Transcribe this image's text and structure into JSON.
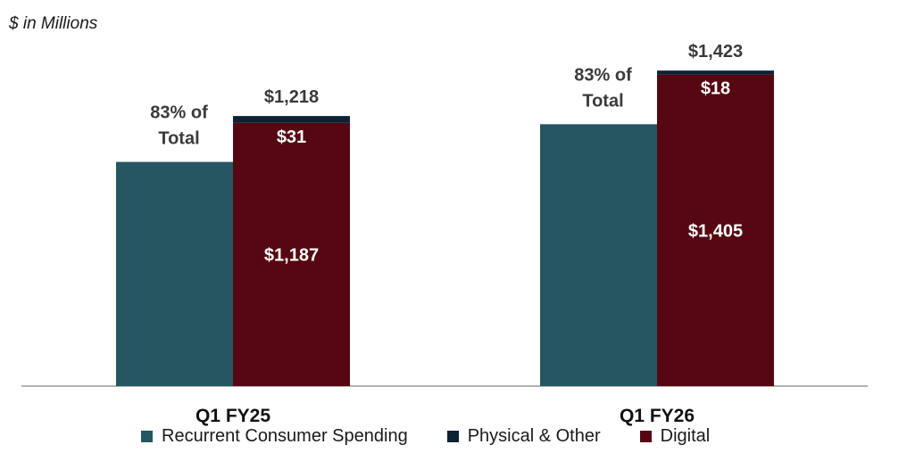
{
  "unit_label": "$ in Millions",
  "colors": {
    "recurrent": "#255661",
    "physical": "#0d2233",
    "digital": "#560711",
    "axis": "#9a9a9a",
    "text_dark": "#3a3a3a",
    "text_white": "#ffffff"
  },
  "chart_data": {
    "type": "bar",
    "stacked": true,
    "categories": [
      "Q1 FY25",
      "Q1 FY26"
    ],
    "ylim": [
      0,
      1500
    ],
    "recurrent_bar": {
      "name": "Recurrent Consumer Spending",
      "values": [
        1011,
        1181
      ],
      "annotations": [
        "83% of\nTotal",
        "83% of\nTotal"
      ]
    },
    "stack_series": [
      {
        "name": "Digital",
        "values": [
          1187,
          1405
        ],
        "labels": [
          "$1,187",
          "$1,405"
        ]
      },
      {
        "name": "Physical & Other",
        "values": [
          31,
          18
        ],
        "labels": [
          "$31",
          "$18"
        ]
      }
    ],
    "totals": [
      "$1,218",
      "$1,423"
    ]
  },
  "legend": [
    {
      "label": "Recurrent Consumer Spending",
      "color_key": "recurrent"
    },
    {
      "label": "Physical & Other",
      "color_key": "physical"
    },
    {
      "label": "Digital",
      "color_key": "digital"
    }
  ]
}
